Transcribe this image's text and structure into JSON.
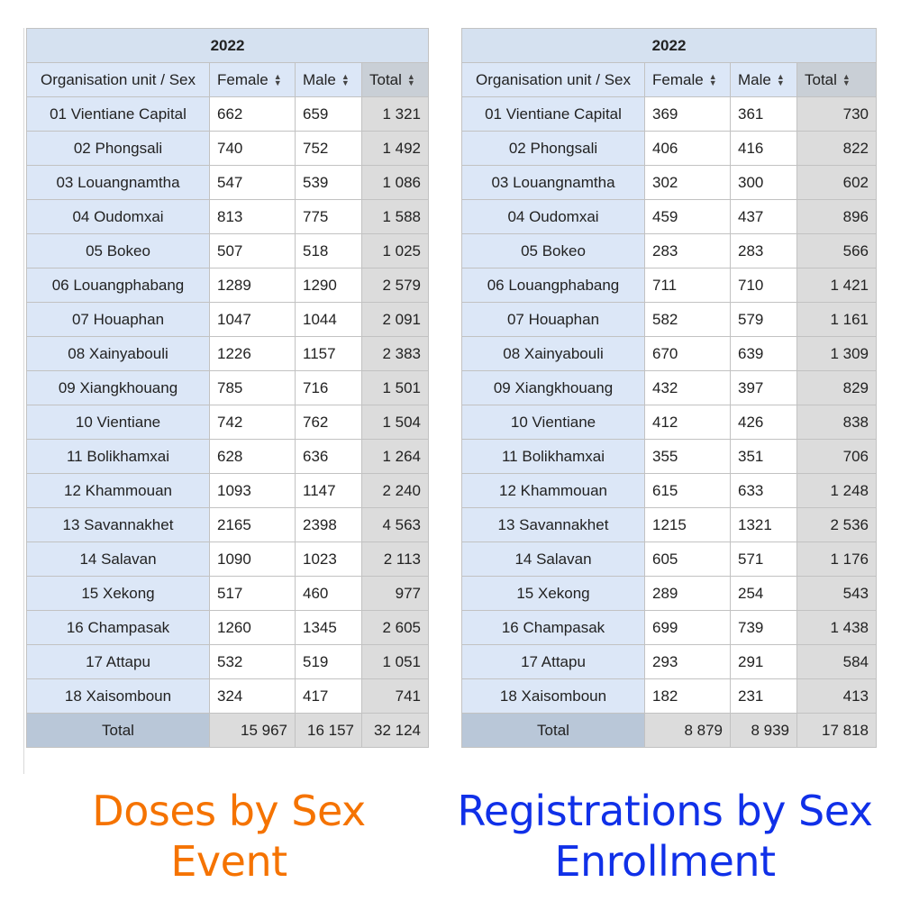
{
  "colors": {
    "left_caption": "#f57300",
    "right_caption": "#1030e8"
  },
  "sort_icon": "sort-arrows-icon",
  "left": {
    "period": "2022",
    "headers": {
      "org": "Organisation unit / Sex",
      "female": "Female",
      "male": "Male",
      "total": "Total"
    },
    "rows": [
      {
        "org": "01 Vientiane Capital",
        "female": "662",
        "male": "659",
        "total": "1 321"
      },
      {
        "org": "02 Phongsali",
        "female": "740",
        "male": "752",
        "total": "1 492"
      },
      {
        "org": "03 Louangnamtha",
        "female": "547",
        "male": "539",
        "total": "1 086"
      },
      {
        "org": "04 Oudomxai",
        "female": "813",
        "male": "775",
        "total": "1 588"
      },
      {
        "org": "05 Bokeo",
        "female": "507",
        "male": "518",
        "total": "1 025"
      },
      {
        "org": "06 Louangphabang",
        "female": "1289",
        "male": "1290",
        "total": "2 579"
      },
      {
        "org": "07 Houaphan",
        "female": "1047",
        "male": "1044",
        "total": "2 091"
      },
      {
        "org": "08 Xainyabouli",
        "female": "1226",
        "male": "1157",
        "total": "2 383"
      },
      {
        "org": "09 Xiangkhouang",
        "female": "785",
        "male": "716",
        "total": "1 501"
      },
      {
        "org": "10 Vientiane",
        "female": "742",
        "male": "762",
        "total": "1 504"
      },
      {
        "org": "11 Bolikhamxai",
        "female": "628",
        "male": "636",
        "total": "1 264"
      },
      {
        "org": "12 Khammouan",
        "female": "1093",
        "male": "1147",
        "total": "2 240"
      },
      {
        "org": "13 Savannakhet",
        "female": "2165",
        "male": "2398",
        "total": "4 563"
      },
      {
        "org": "14 Salavan",
        "female": "1090",
        "male": "1023",
        "total": "2 113"
      },
      {
        "org": "15 Xekong",
        "female": "517",
        "male": "460",
        "total": "977"
      },
      {
        "org": "16 Champasak",
        "female": "1260",
        "male": "1345",
        "total": "2 605"
      },
      {
        "org": "17 Attapu",
        "female": "532",
        "male": "519",
        "total": "1 051"
      },
      {
        "org": "18 Xaisomboun",
        "female": "324",
        "male": "417",
        "total": "741"
      }
    ],
    "grand_total": {
      "label": "Total",
      "female": "15 967",
      "male": "16 157",
      "total": "32 124"
    },
    "caption_line1": "Doses by Sex",
    "caption_line2": "Event"
  },
  "right": {
    "period": "2022",
    "headers": {
      "org": "Organisation unit / Sex",
      "female": "Female",
      "male": "Male",
      "total": "Total"
    },
    "rows": [
      {
        "org": "01 Vientiane Capital",
        "female": "369",
        "male": "361",
        "total": "730"
      },
      {
        "org": "02 Phongsali",
        "female": "406",
        "male": "416",
        "total": "822"
      },
      {
        "org": "03 Louangnamtha",
        "female": "302",
        "male": "300",
        "total": "602"
      },
      {
        "org": "04 Oudomxai",
        "female": "459",
        "male": "437",
        "total": "896"
      },
      {
        "org": "05 Bokeo",
        "female": "283",
        "male": "283",
        "total": "566"
      },
      {
        "org": "06 Louangphabang",
        "female": "711",
        "male": "710",
        "total": "1 421"
      },
      {
        "org": "07 Houaphan",
        "female": "582",
        "male": "579",
        "total": "1 161"
      },
      {
        "org": "08 Xainyabouli",
        "female": "670",
        "male": "639",
        "total": "1 309"
      },
      {
        "org": "09 Xiangkhouang",
        "female": "432",
        "male": "397",
        "total": "829"
      },
      {
        "org": "10 Vientiane",
        "female": "412",
        "male": "426",
        "total": "838"
      },
      {
        "org": "11 Bolikhamxai",
        "female": "355",
        "male": "351",
        "total": "706"
      },
      {
        "org": "12 Khammouan",
        "female": "615",
        "male": "633",
        "total": "1 248"
      },
      {
        "org": "13 Savannakhet",
        "female": "1215",
        "male": "1321",
        "total": "2 536"
      },
      {
        "org": "14 Salavan",
        "female": "605",
        "male": "571",
        "total": "1 176"
      },
      {
        "org": "15 Xekong",
        "female": "289",
        "male": "254",
        "total": "543"
      },
      {
        "org": "16 Champasak",
        "female": "699",
        "male": "739",
        "total": "1 438"
      },
      {
        "org": "17 Attapu",
        "female": "293",
        "male": "291",
        "total": "584"
      },
      {
        "org": "18 Xaisomboun",
        "female": "182",
        "male": "231",
        "total": "413"
      }
    ],
    "grand_total": {
      "label": "Total",
      "female": "8 879",
      "male": "8 939",
      "total": "17 818"
    },
    "caption_line1": "Registrations by Sex",
    "caption_line2": "Enrollment"
  }
}
